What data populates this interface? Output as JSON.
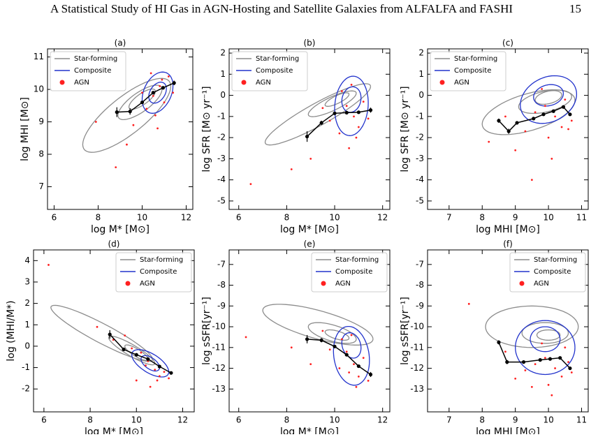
{
  "header": {
    "title": "A Statistical Study of HI Gas in AGN-Hosting and Satellite Galaxies from ALFALFA and FASHI",
    "page": "15"
  },
  "chart_data": [
    {
      "type": "scatter",
      "title": "(a)",
      "xlabel": "log M* [M⊙]",
      "ylabel": "log MHI [M⊙]",
      "xlim": [
        5.7,
        12.3
      ],
      "ylim": [
        6.3,
        11.25
      ],
      "xticks": [
        6,
        8,
        10,
        12
      ],
      "yticks": [
        7,
        8,
        9,
        10,
        11
      ],
      "legend": "upper left",
      "series": [
        {
          "name": "Star-forming",
          "color": "#8c8c8c",
          "contours": [
            [
              9.3,
              9.2,
              2.0,
              0.7,
              0.45
            ],
            [
              9.9,
              9.6,
              1.0,
              0.35,
              0.4
            ],
            [
              10.0,
              9.7,
              0.6,
              0.2,
              0.4
            ]
          ]
        },
        {
          "name": "Composite",
          "color": "#2233cc",
          "contours": [
            [
              10.7,
              9.9,
              0.7,
              0.6,
              0.3
            ],
            [
              10.7,
              9.9,
              0.4,
              0.3,
              0.3
            ]
          ]
        },
        {
          "name": "AGN",
          "color": "#ff2020",
          "x": [
            10.5,
            10.8,
            11.0,
            10.2,
            10.9,
            9.6,
            10.6,
            11.2,
            9.3,
            8.8,
            11.4,
            10.4,
            7.9,
            10.0,
            10.7
          ],
          "y": [
            9.8,
            10.1,
            9.6,
            9.4,
            10.3,
            8.9,
            9.2,
            10.4,
            8.3,
            7.6,
            9.9,
            10.5,
            9.0,
            9.9,
            8.8
          ]
        }
      ],
      "median": {
        "color": "#000000",
        "x": [
          8.85,
          9.45,
          10.0,
          10.5,
          10.95,
          11.45
        ],
        "y": [
          9.3,
          9.32,
          9.6,
          9.9,
          10.05,
          10.2
        ],
        "err": [
          0.15,
          0.1,
          0.05,
          0.05,
          0.04,
          0.07
        ]
      }
    },
    {
      "type": "scatter",
      "title": "(b)",
      "xlabel": "log M* [M⊙]",
      "ylabel": "log SFR [M⊙ yr⁻¹]",
      "xlim": [
        5.6,
        12.3
      ],
      "ylim": [
        -5.4,
        2.2
      ],
      "xticks": [
        6,
        8,
        10,
        12
      ],
      "yticks": [
        -5,
        -4,
        -3,
        -2,
        -1,
        0,
        1,
        2
      ],
      "legend": "upper left",
      "series": [
        {
          "name": "Star-forming",
          "color": "#8c8c8c",
          "contours": [
            [
              9.3,
              -0.9,
              2.2,
              0.6,
              0.6
            ],
            [
              9.9,
              -0.4,
              1.0,
              0.35,
              0.5
            ],
            [
              10.1,
              -0.2,
              0.5,
              0.2,
              0.5
            ]
          ]
        },
        {
          "name": "Composite",
          "color": "#2233cc",
          "contours": [
            [
              10.7,
              -0.5,
              0.7,
              1.4,
              0.2
            ],
            [
              10.7,
              -0.2,
              0.4,
              0.6,
              0.2
            ]
          ]
        },
        {
          "name": "AGN",
          "color": "#ff2020",
          "x": [
            10.5,
            10.8,
            11.0,
            10.3,
            10.9,
            9.8,
            10.6,
            11.2,
            9.0,
            8.2,
            11.4,
            10.2,
            10.7,
            6.5,
            9.5
          ],
          "y": [
            -0.5,
            -1.0,
            -1.5,
            0.2,
            -2.0,
            -1.2,
            -2.5,
            -0.3,
            -3.0,
            -3.5,
            -1.1,
            -1.8,
            0.5,
            -4.2,
            -0.6
          ]
        }
      ],
      "median": {
        "color": "#000000",
        "x": [
          8.85,
          9.45,
          10.0,
          10.5,
          11.0,
          11.5
        ],
        "y": [
          -1.95,
          -1.3,
          -0.85,
          -0.82,
          -0.8,
          -0.7
        ],
        "err": [
          0.25,
          0.1,
          0.05,
          0.05,
          0.05,
          0.12
        ]
      }
    },
    {
      "type": "scatter",
      "title": "(c)",
      "xlabel": "log MHI [M⊙]",
      "ylabel": "log SFR [M⊙ yr⁻¹]",
      "xlim": [
        6.35,
        11.2
      ],
      "ylim": [
        -5.4,
        2.2
      ],
      "xticks": [
        7,
        8,
        9,
        10,
        11
      ],
      "yticks": [
        -5,
        -4,
        -3,
        -2,
        -1,
        0,
        1,
        2
      ],
      "legend": "upper left",
      "series": [
        {
          "name": "Star-forming",
          "color": "#8c8c8c",
          "contours": [
            [
              9.4,
              -0.8,
              1.4,
              0.9,
              0.4
            ],
            [
              9.9,
              -0.3,
              0.8,
              0.5,
              0.3
            ],
            [
              10.0,
              -0.1,
              0.4,
              0.3,
              0.3
            ]
          ]
        },
        {
          "name": "Composite",
          "color": "#2233cc",
          "contours": [
            [
              10.0,
              -0.2,
              0.85,
              1.1,
              0.3
            ],
            [
              10.0,
              0.0,
              0.45,
              0.5,
              0.2
            ]
          ]
        },
        {
          "name": "AGN",
          "color": "#ff2020",
          "x": [
            9.9,
            10.2,
            10.4,
            9.6,
            10.0,
            9.3,
            10.5,
            9.0,
            8.7,
            10.7,
            9.8,
            8.2,
            10.1,
            9.5,
            10.6
          ],
          "y": [
            -0.5,
            -1.0,
            -1.5,
            -0.8,
            -2.0,
            -1.7,
            -0.2,
            -2.6,
            -1.0,
            -1.2,
            0.3,
            -2.2,
            -3.0,
            -4.0,
            -1.6
          ]
        }
      ],
      "median": {
        "color": "#000000",
        "x": [
          8.5,
          8.8,
          9.05,
          9.55,
          9.85,
          10.15,
          10.45,
          10.65
        ],
        "y": [
          -1.2,
          -1.7,
          -1.3,
          -1.1,
          -0.9,
          -0.75,
          -0.55,
          -0.9
        ],
        "err": [
          0.1,
          0.12,
          0.08,
          0.05,
          0.05,
          0.05,
          0.05,
          0.08
        ]
      }
    },
    {
      "type": "scatter",
      "title": "(d)",
      "xlabel": "log M* [M⊙]",
      "ylabel": "log (MHI/M*)",
      "xlim": [
        5.55,
        12.5
      ],
      "ylim": [
        -3.07,
        4.5
      ],
      "xticks": [
        6,
        8,
        10,
        12
      ],
      "yticks": [
        -2,
        -1,
        0,
        1,
        2,
        3,
        4
      ],
      "legend": "upper right",
      "series": [
        {
          "name": "Star-forming",
          "color": "#8c8c8c",
          "contours": [
            [
              8.5,
              0.6,
              2.2,
              0.5,
              -0.55
            ],
            [
              9.8,
              -0.2,
              1.0,
              0.3,
              -0.6
            ],
            [
              10.0,
              -0.3,
              0.5,
              0.2,
              -0.6
            ]
          ]
        },
        {
          "name": "Composite",
          "color": "#2233cc",
          "contours": [
            [
              10.6,
              -0.8,
              0.8,
              0.5,
              -0.5
            ],
            [
              10.6,
              -0.8,
              0.4,
              0.3,
              -0.5
            ]
          ]
        },
        {
          "name": "AGN",
          "color": "#ff2020",
          "x": [
            10.5,
            10.8,
            11.0,
            10.2,
            10.9,
            9.8,
            10.6,
            11.2,
            9.0,
            8.3,
            11.4,
            6.2,
            10.4,
            9.5,
            10.0
          ],
          "y": [
            -0.7,
            -1.1,
            -1.4,
            -0.3,
            -1.6,
            -0.1,
            -1.9,
            -1.2,
            0.3,
            0.9,
            -1.5,
            3.8,
            -0.9,
            0.5,
            -1.6
          ]
        }
      ],
      "median": {
        "color": "#000000",
        "x": [
          8.85,
          9.45,
          10.0,
          10.5,
          11.0,
          11.5
        ],
        "y": [
          0.55,
          -0.15,
          -0.4,
          -0.6,
          -0.95,
          -1.25
        ],
        "err": [
          0.2,
          0.08,
          0.05,
          0.05,
          0.04,
          0.07
        ]
      }
    },
    {
      "type": "scatter",
      "title": "(e)",
      "xlabel": "log M* [M⊙]",
      "ylabel": "log sSFR[yr⁻¹]",
      "xlim": [
        5.6,
        12.3
      ],
      "ylim": [
        -14.1,
        -6.3
      ],
      "xticks": [
        6,
        8,
        10,
        12
      ],
      "yticks": [
        -13,
        -12,
        -11,
        -10,
        -9,
        -8,
        -7
      ],
      "legend": "upper right",
      "series": [
        {
          "name": "Star-forming",
          "color": "#8c8c8c",
          "contours": [
            [
              9.3,
              -9.9,
              2.3,
              0.7,
              -0.3
            ],
            [
              9.9,
              -10.3,
              1.0,
              0.4,
              -0.3
            ],
            [
              10.1,
              -10.4,
              0.5,
              0.2,
              -0.3
            ]
          ]
        },
        {
          "name": "Composite",
          "color": "#2233cc",
          "contours": [
            [
              10.7,
              -11.4,
              0.75,
              1.4,
              -0.3
            ],
            [
              10.7,
              -10.9,
              0.4,
              0.6,
              -0.3
            ]
          ]
        },
        {
          "name": "AGN",
          "color": "#ff2020",
          "x": [
            10.5,
            10.8,
            11.0,
            10.3,
            10.9,
            9.8,
            10.6,
            11.2,
            9.0,
            8.2,
            11.4,
            10.2,
            10.7,
            6.3,
            9.5
          ],
          "y": [
            -11.2,
            -11.8,
            -12.4,
            -10.6,
            -12.9,
            -11.1,
            -12.2,
            -11.5,
            -11.8,
            -11.0,
            -12.6,
            -12.0,
            -10.4,
            -10.5,
            -10.2
          ]
        }
      ],
      "median": {
        "color": "#000000",
        "x": [
          8.85,
          9.45,
          10.0,
          10.5,
          11.0,
          11.5
        ],
        "y": [
          -10.6,
          -10.65,
          -10.95,
          -11.35,
          -11.9,
          -12.3
        ],
        "err": [
          0.2,
          0.1,
          0.06,
          0.05,
          0.05,
          0.12
        ]
      }
    },
    {
      "type": "scatter",
      "title": "(f)",
      "xlabel": "log MHI [M⊙]",
      "ylabel": "log sSFR[yr⁻¹]",
      "xlim": [
        6.35,
        11.2
      ],
      "ylim": [
        -14.1,
        -6.3
      ],
      "xticks": [
        7,
        8,
        9,
        10,
        11
      ],
      "yticks": [
        -13,
        -12,
        -11,
        -10,
        -9,
        -8,
        -7
      ],
      "legend": "upper right",
      "series": [
        {
          "name": "Star-forming",
          "color": "#8c8c8c",
          "contours": [
            [
              9.5,
              -10.0,
              1.4,
              1.0,
              0
            ],
            [
              9.9,
              -10.3,
              0.7,
              0.5,
              0
            ],
            [
              10.0,
              -10.4,
              0.35,
              0.25,
              0
            ]
          ]
        },
        {
          "name": "Composite",
          "color": "#2233cc",
          "contours": [
            [
              9.9,
              -11.0,
              0.9,
              1.3,
              0
            ],
            [
              9.9,
              -10.6,
              0.45,
              0.6,
              0
            ]
          ]
        },
        {
          "name": "AGN",
          "color": "#ff2020",
          "x": [
            9.9,
            10.2,
            10.4,
            9.6,
            10.0,
            9.3,
            10.5,
            9.0,
            8.7,
            10.7,
            9.8,
            7.6,
            10.1,
            9.5,
            10.6
          ],
          "y": [
            -11.5,
            -12.0,
            -12.4,
            -11.8,
            -12.8,
            -12.1,
            -11.0,
            -12.5,
            -11.2,
            -12.2,
            -10.8,
            -8.9,
            -13.3,
            -12.9,
            -11.7
          ]
        }
      ],
      "median": {
        "color": "#000000",
        "x": [
          8.5,
          8.75,
          9.25,
          9.75,
          10.05,
          10.35,
          10.65
        ],
        "y": [
          -10.75,
          -11.7,
          -11.7,
          -11.6,
          -11.55,
          -11.5,
          -12.0
        ],
        "err": [
          0.1,
          0.1,
          0.05,
          0.05,
          0.04,
          0.04,
          0.06
        ]
      }
    }
  ]
}
